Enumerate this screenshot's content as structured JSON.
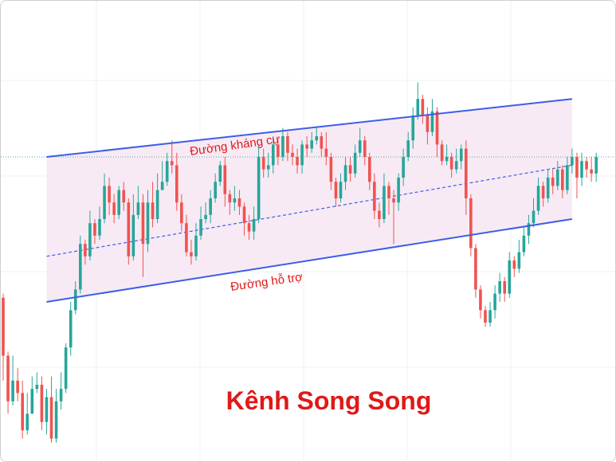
{
  "caption": "Kênh Song Song",
  "channel": {
    "resistance_label": "Đường kháng cự",
    "support_label": "Đường hỗ trợ"
  },
  "colors": {
    "up": "#26a69a",
    "down": "#ef5350",
    "channel_line": "#3d5ee8",
    "channel_fill": "#f7eaf4",
    "label": "#e01919",
    "grid": "#eef0f3",
    "hline": "#5aa89c"
  },
  "chart_data": {
    "type": "candlestick",
    "title": "Kênh Song Song",
    "xlabel": "",
    "ylabel": "",
    "ylim": [
      0,
      100
    ],
    "grid": true,
    "annotations": [
      "Đường kháng cự",
      "Đường hỗ trợ"
    ],
    "channel": {
      "resistance": {
        "start": [
          9,
          70
        ],
        "end": [
          118,
          84
        ]
      },
      "midline": {
        "start": [
          9,
          46
        ],
        "end": [
          118,
          68
        ]
      },
      "support": {
        "start": [
          9,
          35
        ],
        "end": [
          118,
          55
        ]
      }
    },
    "horizontal_level": 70,
    "candles": [
      [
        36,
        22,
        37,
        16
      ],
      [
        22,
        11,
        23,
        8
      ],
      [
        11,
        16,
        22,
        10
      ],
      [
        16,
        13,
        19,
        11
      ],
      [
        13,
        4,
        16,
        2
      ],
      [
        4,
        8,
        13,
        3
      ],
      [
        8,
        14,
        17,
        8
      ],
      [
        14,
        15,
        18,
        13
      ],
      [
        15,
        6,
        17,
        4
      ],
      [
        6,
        12,
        14,
        3
      ],
      [
        12,
        2,
        17,
        1
      ],
      [
        2,
        11,
        14,
        1
      ],
      [
        11,
        14,
        18,
        9
      ],
      [
        14,
        24,
        25,
        13
      ],
      [
        24,
        33,
        35,
        22
      ],
      [
        33,
        38,
        40,
        32
      ],
      [
        38,
        49,
        51,
        37
      ],
      [
        49,
        46,
        50,
        44
      ],
      [
        46,
        54,
        57,
        45
      ],
      [
        54,
        51,
        55,
        49
      ],
      [
        51,
        55,
        58,
        50
      ],
      [
        55,
        63,
        66,
        54
      ],
      [
        63,
        59,
        65,
        56
      ],
      [
        59,
        56,
        61,
        54
      ],
      [
        56,
        62,
        63,
        55
      ],
      [
        62,
        59,
        64,
        57
      ],
      [
        59,
        46,
        60,
        44
      ],
      [
        46,
        56,
        61,
        45
      ],
      [
        56,
        59,
        63,
        55
      ],
      [
        59,
        49,
        61,
        41
      ],
      [
        49,
        59,
        62,
        47
      ],
      [
        59,
        55,
        64,
        53
      ],
      [
        55,
        62,
        66,
        54
      ],
      [
        62,
        64,
        69,
        62
      ],
      [
        64,
        69,
        71,
        63
      ],
      [
        69,
        68,
        74,
        66
      ],
      [
        68,
        59,
        71,
        57
      ],
      [
        59,
        54,
        61,
        52
      ],
      [
        54,
        47,
        56,
        46
      ],
      [
        47,
        46,
        50,
        44
      ],
      [
        46,
        51,
        54,
        45
      ],
      [
        51,
        55,
        58,
        50
      ],
      [
        55,
        56,
        59,
        54
      ],
      [
        56,
        60,
        62,
        54
      ],
      [
        60,
        64,
        66,
        59
      ],
      [
        64,
        68,
        69,
        63
      ],
      [
        68,
        61,
        70,
        58
      ],
      [
        61,
        59,
        62,
        56
      ],
      [
        59,
        60,
        63,
        57
      ],
      [
        60,
        58,
        62,
        56
      ],
      [
        58,
        54,
        59,
        51
      ],
      [
        54,
        52,
        56,
        50
      ],
      [
        52,
        55,
        58,
        50
      ],
      [
        55,
        70,
        73,
        54
      ],
      [
        70,
        67,
        72,
        65
      ],
      [
        67,
        68,
        71,
        65
      ],
      [
        68,
        73,
        75,
        66
      ],
      [
        73,
        70,
        74,
        68
      ],
      [
        70,
        75,
        77,
        69
      ],
      [
        75,
        71,
        76,
        69
      ],
      [
        71,
        70,
        73,
        68
      ],
      [
        70,
        68,
        72,
        66
      ],
      [
        68,
        73,
        74,
        66
      ],
      [
        73,
        72,
        75,
        70
      ],
      [
        72,
        74,
        76,
        71
      ],
      [
        74,
        75,
        77,
        73
      ],
      [
        75,
        72,
        76,
        70
      ],
      [
        72,
        70,
        76,
        68
      ],
      [
        70,
        64,
        71,
        62
      ],
      [
        64,
        60,
        65,
        58
      ],
      [
        60,
        64,
        66,
        59
      ],
      [
        64,
        68,
        70,
        62
      ],
      [
        68,
        66,
        70,
        64
      ],
      [
        66,
        71,
        73,
        65
      ],
      [
        71,
        74,
        77,
        70
      ],
      [
        74,
        70,
        75,
        68
      ],
      [
        70,
        64,
        71,
        62
      ],
      [
        64,
        57,
        66,
        55
      ],
      [
        57,
        55,
        59,
        53
      ],
      [
        55,
        63,
        66,
        54
      ],
      [
        63,
        60,
        64,
        56
      ],
      [
        60,
        59,
        62,
        49
      ],
      [
        59,
        65,
        66,
        57
      ],
      [
        65,
        70,
        72,
        63
      ],
      [
        70,
        74,
        76,
        69
      ],
      [
        74,
        80,
        82,
        72
      ],
      [
        80,
        84,
        88,
        79
      ],
      [
        84,
        80,
        85,
        78
      ],
      [
        80,
        76,
        82,
        73
      ],
      [
        76,
        81,
        84,
        75
      ],
      [
        81,
        73,
        82,
        70
      ],
      [
        73,
        69,
        74,
        68
      ],
      [
        69,
        70,
        73,
        68
      ],
      [
        70,
        67,
        71,
        65
      ],
      [
        67,
        69,
        72,
        66
      ],
      [
        69,
        72,
        73,
        67
      ],
      [
        72,
        60,
        74,
        56
      ],
      [
        60,
        48,
        61,
        46
      ],
      [
        48,
        38,
        49,
        36
      ],
      [
        38,
        33,
        39,
        31
      ],
      [
        33,
        30,
        34,
        29
      ],
      [
        30,
        33,
        35,
        29
      ],
      [
        33,
        37,
        39,
        31
      ],
      [
        37,
        40,
        42,
        35
      ],
      [
        40,
        37,
        41,
        35
      ],
      [
        37,
        45,
        47,
        36
      ],
      [
        45,
        43,
        46,
        41
      ],
      [
        43,
        47,
        50,
        42
      ],
      [
        47,
        51,
        53,
        46
      ],
      [
        51,
        54,
        56,
        49
      ],
      [
        54,
        57,
        60,
        53
      ],
      [
        57,
        63,
        65,
        56
      ],
      [
        63,
        60,
        64,
        58
      ],
      [
        60,
        65,
        67,
        59
      ],
      [
        65,
        63,
        67,
        61
      ],
      [
        63,
        67,
        69,
        62
      ],
      [
        67,
        62,
        68,
        60
      ],
      [
        62,
        68,
        70,
        61
      ],
      [
        68,
        70,
        72,
        66
      ],
      [
        70,
        65,
        71,
        60
      ],
      [
        65,
        69,
        71,
        63
      ],
      [
        69,
        67,
        70,
        65
      ],
      [
        67,
        66,
        70,
        64
      ],
      [
        66,
        70,
        71,
        64
      ]
    ]
  }
}
